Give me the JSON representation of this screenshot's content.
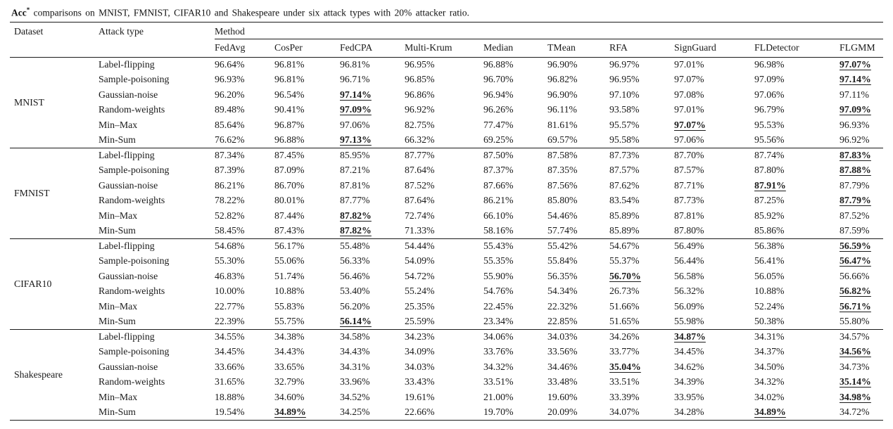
{
  "caption": {
    "term": "Acc",
    "superscript": "*",
    "text": " comparisons on MNIST, FMNIST, CIFAR10 and Shakespeare under six attack types with 20% attacker ratio."
  },
  "table": {
    "col_dataset": "Dataset",
    "col_attack": "Attack type",
    "col_method": "Method",
    "methods": [
      "FedAvg",
      "CosPer",
      "FedCPA",
      "Multi-Krum",
      "Median",
      "TMean",
      "RFA",
      "SignGuard",
      "FLDetector",
      "FLGMM"
    ],
    "groups": [
      {
        "dataset": "MNIST",
        "rows": [
          {
            "attack": "Label-flipping",
            "values": [
              "96.64%",
              "96.81%",
              "96.81%",
              "96.95%",
              "96.88%",
              "96.90%",
              "96.97%",
              "97.01%",
              "96.98%",
              "97.07%"
            ],
            "best": [
              9
            ]
          },
          {
            "attack": "Sample-poisoning",
            "values": [
              "96.93%",
              "96.81%",
              "96.71%",
              "96.85%",
              "96.70%",
              "96.82%",
              "96.95%",
              "97.07%",
              "97.09%",
              "97.14%"
            ],
            "best": [
              9
            ]
          },
          {
            "attack": "Gaussian-noise",
            "values": [
              "96.20%",
              "96.54%",
              "97.14%",
              "96.86%",
              "96.94%",
              "96.90%",
              "97.10%",
              "97.08%",
              "97.06%",
              "97.11%"
            ],
            "best": [
              2
            ]
          },
          {
            "attack": "Random-weights",
            "values": [
              "89.48%",
              "90.41%",
              "97.09%",
              "96.92%",
              "96.26%",
              "96.11%",
              "93.58%",
              "97.01%",
              "96.79%",
              "97.09%"
            ],
            "best": [
              2,
              9
            ]
          },
          {
            "attack": "Min–Max",
            "values": [
              "85.64%",
              "96.87%",
              "97.06%",
              "82.75%",
              "77.47%",
              "81.61%",
              "95.57%",
              "97.07%",
              "95.53%",
              "96.93%"
            ],
            "best": [
              7
            ]
          },
          {
            "attack": "Min-Sum",
            "values": [
              "76.62%",
              "96.88%",
              "97.13%",
              "66.32%",
              "69.25%",
              "69.57%",
              "95.58%",
              "97.06%",
              "95.56%",
              "96.92%"
            ],
            "best": [
              2
            ]
          }
        ]
      },
      {
        "dataset": "FMNIST",
        "rows": [
          {
            "attack": "Label-flipping",
            "values": [
              "87.34%",
              "87.45%",
              "85.95%",
              "87.77%",
              "87.50%",
              "87.58%",
              "87.73%",
              "87.70%",
              "87.74%",
              "87.83%"
            ],
            "best": [
              9
            ]
          },
          {
            "attack": "Sample-poisoning",
            "values": [
              "87.39%",
              "87.09%",
              "87.21%",
              "87.64%",
              "87.37%",
              "87.35%",
              "87.57%",
              "87.57%",
              "87.80%",
              "87.88%"
            ],
            "best": [
              9
            ]
          },
          {
            "attack": "Gaussian-noise",
            "values": [
              "86.21%",
              "86.70%",
              "87.81%",
              "87.52%",
              "87.66%",
              "87.56%",
              "87.62%",
              "87.71%",
              "87.91%",
              "87.79%"
            ],
            "best": [
              8
            ]
          },
          {
            "attack": "Random-weights",
            "values": [
              "78.22%",
              "80.01%",
              "87.77%",
              "87.64%",
              "86.21%",
              "85.80%",
              "83.54%",
              "87.73%",
              "87.25%",
              "87.79%"
            ],
            "best": [
              9
            ]
          },
          {
            "attack": "Min–Max",
            "values": [
              "52.82%",
              "87.44%",
              "87.82%",
              "72.74%",
              "66.10%",
              "54.46%",
              "85.89%",
              "87.81%",
              "85.92%",
              "87.52%"
            ],
            "best": [
              2
            ]
          },
          {
            "attack": "Min-Sum",
            "values": [
              "58.45%",
              "87.43%",
              "87.82%",
              "71.33%",
              "58.16%",
              "57.74%",
              "85.89%",
              "87.80%",
              "85.86%",
              "87.59%"
            ],
            "best": [
              2
            ]
          }
        ]
      },
      {
        "dataset": "CIFAR10",
        "rows": [
          {
            "attack": "Label-flipping",
            "values": [
              "54.68%",
              "56.17%",
              "55.48%",
              "54.44%",
              "55.43%",
              "55.42%",
              "54.67%",
              "56.49%",
              "56.38%",
              "56.59%"
            ],
            "best": [
              9
            ]
          },
          {
            "attack": "Sample-poisoning",
            "values": [
              "55.30%",
              "55.06%",
              "56.33%",
              "54.09%",
              "55.35%",
              "55.84%",
              "55.37%",
              "56.44%",
              "56.41%",
              "56.47%"
            ],
            "best": [
              9
            ]
          },
          {
            "attack": "Gaussian-noise",
            "values": [
              "46.83%",
              "51.74%",
              "56.46%",
              "54.72%",
              "55.90%",
              "56.35%",
              "56.70%",
              "56.58%",
              "56.05%",
              "56.66%"
            ],
            "best": [
              6
            ]
          },
          {
            "attack": "Random-weights",
            "values": [
              "10.00%",
              "10.88%",
              "53.40%",
              "55.24%",
              "54.76%",
              "54.34%",
              "26.73%",
              "56.32%",
              "10.88%",
              "56.82%"
            ],
            "best": [
              9
            ]
          },
          {
            "attack": "Min–Max",
            "values": [
              "22.77%",
              "55.83%",
              "56.20%",
              "25.35%",
              "22.45%",
              "22.32%",
              "51.66%",
              "56.09%",
              "52.24%",
              "56.71%"
            ],
            "best": [
              9
            ]
          },
          {
            "attack": "Min-Sum",
            "values": [
              "22.39%",
              "55.75%",
              "56.14%",
              "25.59%",
              "23.34%",
              "22.85%",
              "51.65%",
              "55.98%",
              "50.38%",
              "55.80%"
            ],
            "best": [
              2
            ]
          }
        ]
      },
      {
        "dataset": "Shakespeare",
        "rows": [
          {
            "attack": "Label-flipping",
            "values": [
              "34.55%",
              "34.38%",
              "34.58%",
              "34.23%",
              "34.06%",
              "34.03%",
              "34.26%",
              "34.87%",
              "34.31%",
              "34.57%"
            ],
            "best": [
              7
            ]
          },
          {
            "attack": "Sample-poisoning",
            "values": [
              "34.45%",
              "34.43%",
              "34.43%",
              "34.09%",
              "33.76%",
              "33.56%",
              "33.77%",
              "34.45%",
              "34.37%",
              "34.56%"
            ],
            "best": [
              9
            ]
          },
          {
            "attack": "Gaussian-noise",
            "values": [
              "33.66%",
              "33.65%",
              "34.31%",
              "34.03%",
              "34.32%",
              "34.46%",
              "35.04%",
              "34.62%",
              "34.50%",
              "34.73%"
            ],
            "best": [
              6
            ]
          },
          {
            "attack": "Random-weights",
            "values": [
              "31.65%",
              "32.79%",
              "33.96%",
              "33.43%",
              "33.51%",
              "33.48%",
              "33.51%",
              "34.39%",
              "34.32%",
              "35.14%"
            ],
            "best": [
              9
            ]
          },
          {
            "attack": "Min–Max",
            "values": [
              "18.88%",
              "34.60%",
              "34.52%",
              "19.61%",
              "21.00%",
              "19.60%",
              "33.39%",
              "33.95%",
              "34.02%",
              "34.98%"
            ],
            "best": [
              9
            ]
          },
          {
            "attack": "Min-Sum",
            "values": [
              "19.54%",
              "34.89%",
              "34.25%",
              "22.66%",
              "19.70%",
              "20.09%",
              "34.07%",
              "34.28%",
              "34.89%",
              "34.72%"
            ],
            "best": [
              1,
              8
            ]
          }
        ]
      }
    ]
  }
}
